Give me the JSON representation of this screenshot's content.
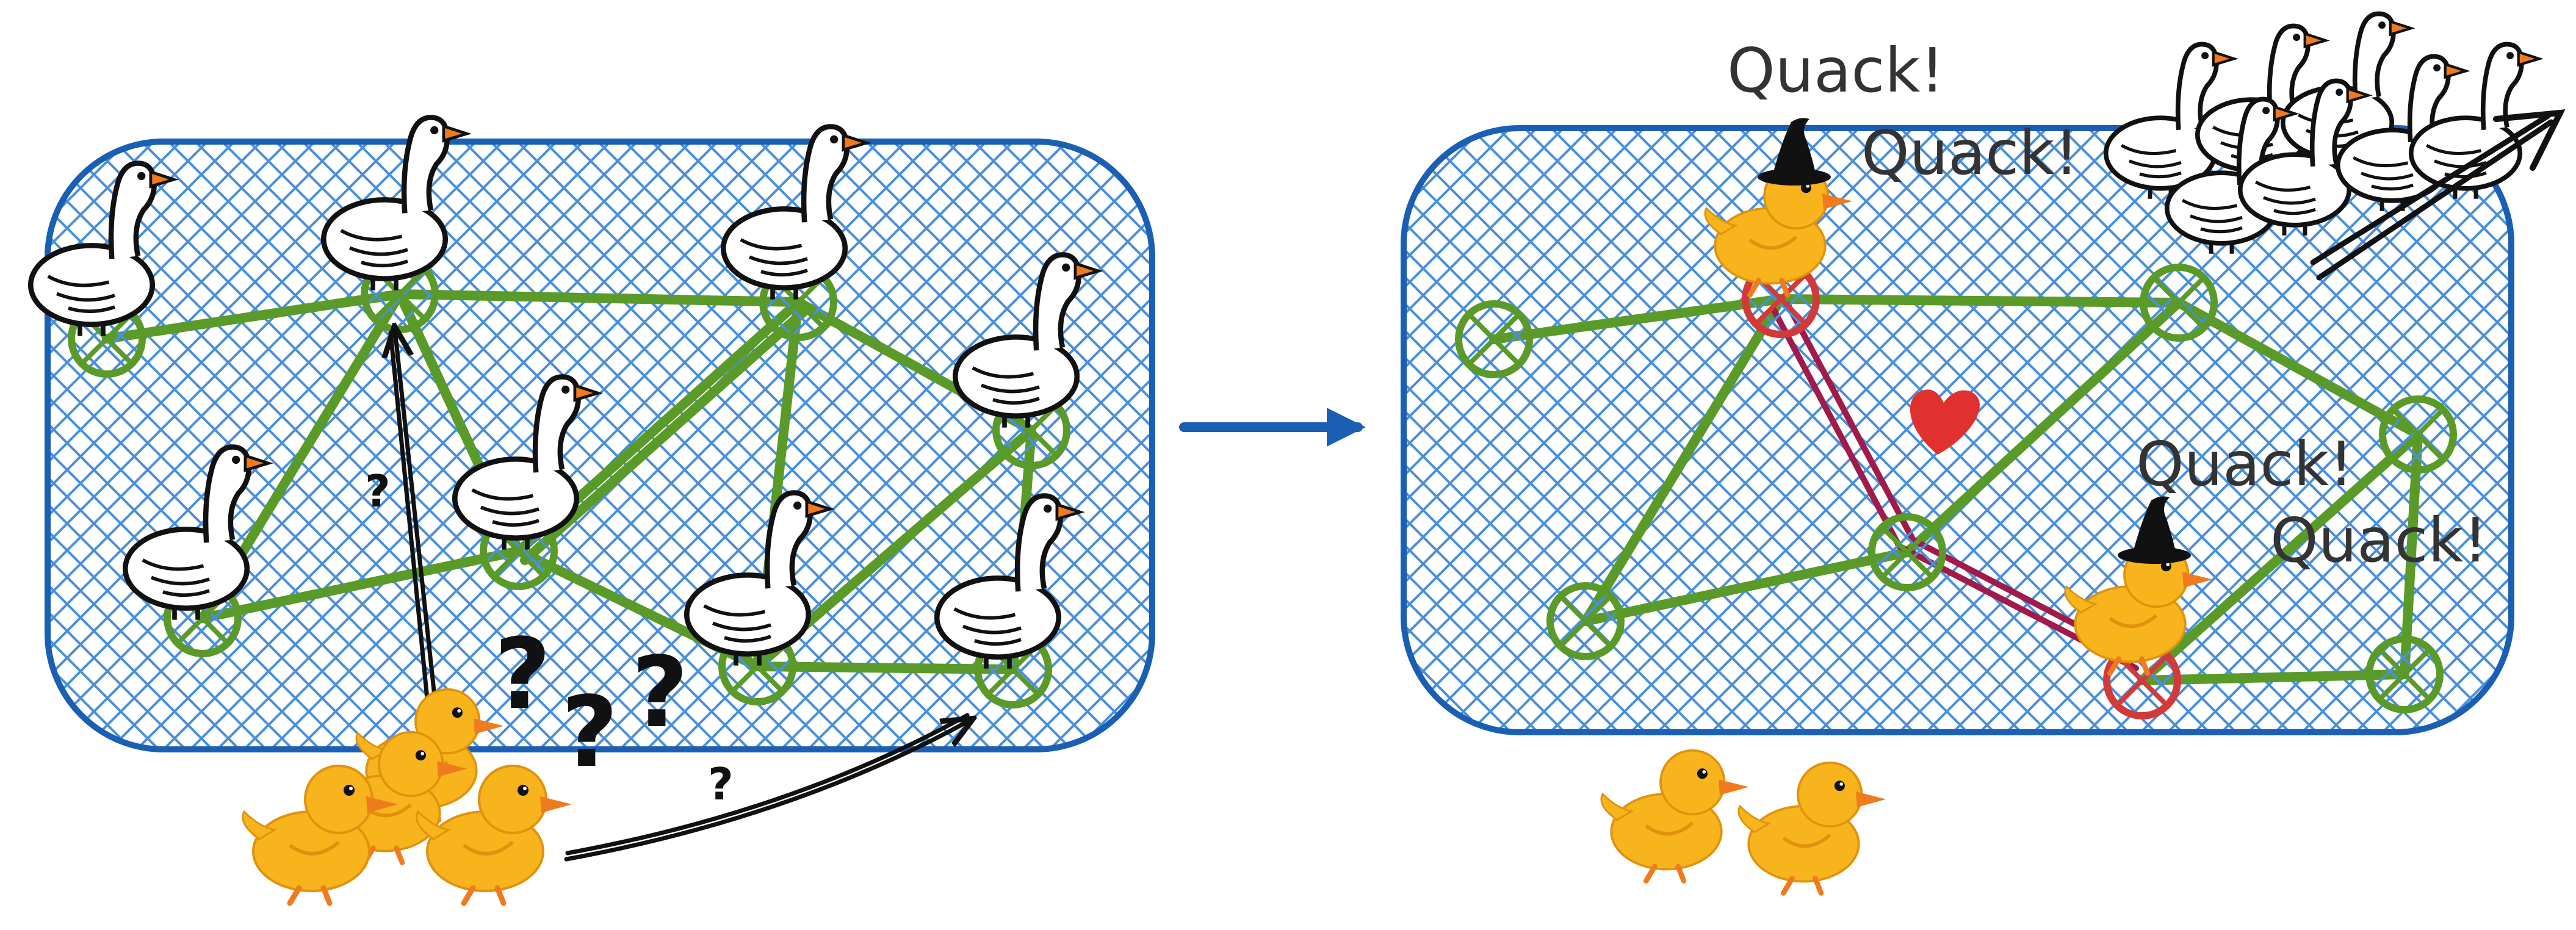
{
  "colors": {
    "region_border": "#1a5fb4",
    "hatch": "#4a90d9",
    "edge": "#5a9a28",
    "node": "#5a9a28",
    "path": "#a01a4a",
    "node_highlight": "#d23a3a",
    "arrow": "#1a5fb4",
    "heart": "#e03030",
    "duck": "#f8b41c",
    "beak": "#f07a1e",
    "hat": "#111111"
  },
  "left_panel": {
    "question_marks_small": [
      "?",
      "?"
    ],
    "question_marks_big": [
      "?",
      "?",
      "?"
    ]
  },
  "right_panel": {
    "speech": [
      "Quack!",
      "Quack!",
      "Quack!",
      "Quack!"
    ]
  },
  "icons": [
    "goose-icon",
    "duckling-icon",
    "witch-hat-icon",
    "heart-icon",
    "arrow-icon"
  ]
}
